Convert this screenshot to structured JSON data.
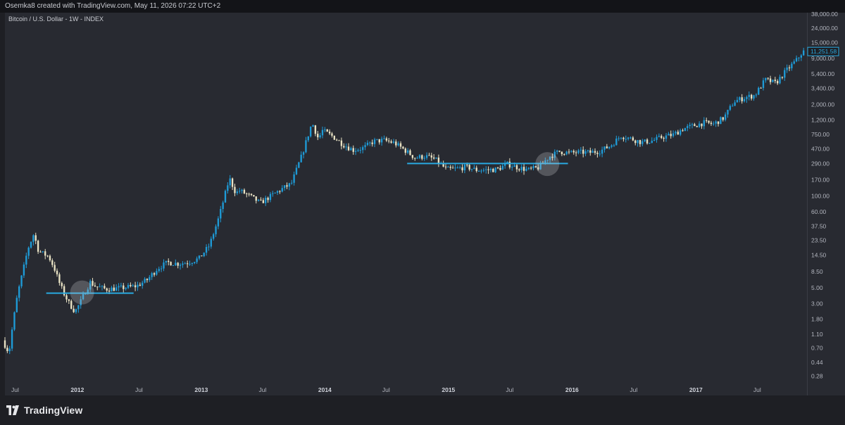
{
  "header": {
    "credit": "Osemka8 created with TradingView.com, May 11, 2026 07:22 UTC+2"
  },
  "chart_data": {
    "type": "candlestick",
    "title": "Bitcoin / U.S. Dollar - 1W - INDEX",
    "y_scale": "log",
    "ylim": [
      0.22,
      40000
    ],
    "xlim": [
      "2011-06",
      "2017-11"
    ],
    "y_ticks": [
      "38,000.00",
      "24,000.00",
      "15,000.00",
      "9,000.00",
      "5,400.00",
      "3,400.00",
      "2,000.00",
      "1,200.00",
      "750.00",
      "470.00",
      "290.00",
      "170.00",
      "100.00",
      "60.00",
      "37.50",
      "23.50",
      "14.50",
      "8.50",
      "5.00",
      "3.00",
      "1.80",
      "1.10",
      "0.70",
      "0.44",
      "0.28"
    ],
    "x_ticks": [
      {
        "label": "Jul",
        "date": "2011-07"
      },
      {
        "label": "2012",
        "date": "2012-01"
      },
      {
        "label": "Jul",
        "date": "2012-07"
      },
      {
        "label": "2013",
        "date": "2013-01"
      },
      {
        "label": "Jul",
        "date": "2013-07"
      },
      {
        "label": "2014",
        "date": "2014-01"
      },
      {
        "label": "Jul",
        "date": "2014-07"
      },
      {
        "label": "2015",
        "date": "2015-01"
      },
      {
        "label": "Jul",
        "date": "2015-07"
      },
      {
        "label": "2016",
        "date": "2016-01"
      },
      {
        "label": "Jul",
        "date": "2016-07"
      },
      {
        "label": "2017",
        "date": "2017-01"
      },
      {
        "label": "Jul",
        "date": "2017-07"
      }
    ],
    "last_price": "11,251.58",
    "trajectory": [
      [
        "2011-06",
        0.9
      ],
      [
        "2011-06-20",
        0.6
      ],
      [
        "2011-07",
        1.5
      ],
      [
        "2011-07-15",
        4.0
      ],
      [
        "2011-08",
        9.0
      ],
      [
        "2011-08-15",
        18.0
      ],
      [
        "2011-09",
        29.0
      ],
      [
        "2011-09-15",
        17.0
      ],
      [
        "2011-10",
        15.0
      ],
      [
        "2011-10-15",
        14.0
      ],
      [
        "2011-11",
        9.5
      ],
      [
        "2011-11-15",
        6.0
      ],
      [
        "2011-12",
        4.0
      ],
      [
        "2011-12-15",
        3.0
      ],
      [
        "2012-01",
        2.3
      ],
      [
        "2012-01-15",
        3.0
      ],
      [
        "2012-02",
        4.5
      ],
      [
        "2012-02-15",
        6.0
      ],
      [
        "2012-03",
        5.3
      ],
      [
        "2012-04",
        4.8
      ],
      [
        "2012-05",
        4.9
      ],
      [
        "2012-06",
        5.1
      ],
      [
        "2012-07",
        5.3
      ],
      [
        "2012-08",
        6.5
      ],
      [
        "2012-09",
        9.5
      ],
      [
        "2012-10",
        11.5
      ],
      [
        "2012-11",
        11.0
      ],
      [
        "2012-12",
        11.5
      ],
      [
        "2013-01",
        13.0
      ],
      [
        "2013-02",
        20.0
      ],
      [
        "2013-03",
        50.0
      ],
      [
        "2013-04",
        180.0
      ],
      [
        "2013-04-20",
        110.0
      ],
      [
        "2013-05",
        120.0
      ],
      [
        "2013-06",
        100.0
      ],
      [
        "2013-07",
        80.0
      ],
      [
        "2013-08",
        100.0
      ],
      [
        "2013-09",
        125.0
      ],
      [
        "2013-10",
        150.0
      ],
      [
        "2013-11",
        380.0
      ],
      [
        "2013-12",
        1100.0
      ],
      [
        "2013-12-20",
        650.0
      ],
      [
        "2014-01",
        850.0
      ],
      [
        "2014-02",
        700.0
      ],
      [
        "2014-03",
        550.0
      ],
      [
        "2014-04",
        450.0
      ],
      [
        "2014-05",
        480.0
      ],
      [
        "2014-06",
        600.0
      ],
      [
        "2014-07",
        620.0
      ],
      [
        "2014-08",
        570.0
      ],
      [
        "2014-09",
        450.0
      ],
      [
        "2014-10",
        350.0
      ],
      [
        "2014-11",
        370.0
      ],
      [
        "2014-12",
        330.0
      ],
      [
        "2015-01",
        240.0
      ],
      [
        "2015-02",
        245.0
      ],
      [
        "2015-03",
        260.0
      ],
      [
        "2015-04",
        235.0
      ],
      [
        "2015-05",
        235.0
      ],
      [
        "2015-06",
        240.0
      ],
      [
        "2015-07",
        285.0
      ],
      [
        "2015-08",
        255.0
      ],
      [
        "2015-09",
        235.0
      ],
      [
        "2015-10",
        255.0
      ],
      [
        "2015-11",
        360.0
      ],
      [
        "2015-12",
        430.0
      ],
      [
        "2016-01",
        410.0
      ],
      [
        "2016-02",
        420.0
      ],
      [
        "2016-03",
        415.0
      ],
      [
        "2016-04",
        440.0
      ],
      [
        "2016-05",
        520.0
      ],
      [
        "2016-06",
        720.0
      ],
      [
        "2016-07",
        650.0
      ],
      [
        "2016-08",
        580.0
      ],
      [
        "2016-09",
        610.0
      ],
      [
        "2016-10",
        690.0
      ],
      [
        "2016-11",
        740.0
      ],
      [
        "2016-12",
        900.0
      ],
      [
        "2017-01",
        1000.0
      ],
      [
        "2017-02",
        1100.0
      ],
      [
        "2017-03",
        1050.0
      ],
      [
        "2017-04",
        1300.0
      ],
      [
        "2017-05",
        2200.0
      ],
      [
        "2017-06",
        2500.0
      ],
      [
        "2017-07",
        2700.0
      ],
      [
        "2017-08",
        4500.0
      ],
      [
        "2017-09",
        4000.0
      ],
      [
        "2017-10",
        6000.0
      ],
      [
        "2017-11",
        8500.0
      ],
      [
        "2017-11-20",
        11250.0
      ]
    ],
    "horizontal_levels": [
      {
        "price": 4.2,
        "from": "2011-10-01",
        "to": "2012-06-15",
        "color": "#29a9e0"
      },
      {
        "price": 290.0,
        "from": "2014-09-01",
        "to": "2015-12-20",
        "color": "#29a9e0"
      }
    ],
    "highlight_circles": [
      {
        "date": "2012-01-15",
        "price": 4.3
      },
      {
        "date": "2015-10-20",
        "price": 285.0
      }
    ],
    "colors": {
      "up": "#1e9bd7",
      "down": "#e8e2c4",
      "level": "#29a9e0",
      "background": "#282a31",
      "text": "#b2b5be"
    }
  },
  "footer": {
    "brand": "TradingView"
  }
}
